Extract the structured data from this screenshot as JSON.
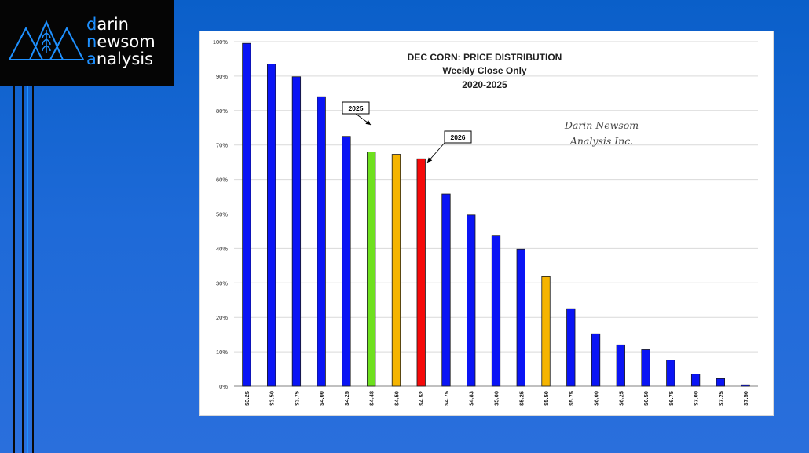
{
  "logo": {
    "line1": "darin",
    "line2": "newsom",
    "line3": "analysis"
  },
  "colors": {
    "background": "#1560d0",
    "blue_bar": "#0a14f5",
    "green_bar": "#6ee01e",
    "orange_bar": "#f5b400",
    "red_bar": "#f50a0a",
    "logo_accent": "#1e90ff"
  },
  "chart_data": {
    "type": "bar",
    "title": "DEC CORN: PRICE DISTRIBUTION",
    "subtitle1": "Weekly Close Only",
    "subtitle2": "2020-2025",
    "watermark_line1": "Darin Newsom",
    "watermark_line2": "Analysis Inc.",
    "ylim": [
      0,
      100
    ],
    "y_ticks": [
      "0%",
      "10%",
      "20%",
      "30%",
      "40%",
      "50%",
      "60%",
      "70%",
      "80%",
      "90%",
      "100%"
    ],
    "categories": [
      "$3.25",
      "$3.50",
      "$3.75",
      "$4.00",
      "$4.25",
      "$4.48",
      "$4.50",
      "$4.52",
      "$4.75",
      "$4.83",
      "$5.00",
      "$5.25",
      "$5.50",
      "$5.75",
      "$6.00",
      "$6.25",
      "$6.50",
      "$6.75",
      "$7.00",
      "$7.25",
      "$7.50"
    ],
    "values": [
      99.5,
      93.5,
      89.8,
      84.0,
      72.5,
      68.0,
      67.3,
      66.0,
      55.8,
      49.7,
      43.8,
      39.8,
      31.8,
      22.5,
      15.2,
      12.0,
      10.6,
      7.6,
      3.5,
      2.2,
      0.4
    ],
    "bar_colors": [
      "blue",
      "blue",
      "blue",
      "blue",
      "blue",
      "green",
      "orange",
      "red",
      "blue",
      "blue",
      "blue",
      "blue",
      "orange",
      "blue",
      "blue",
      "blue",
      "blue",
      "blue",
      "blue",
      "blue",
      "blue"
    ],
    "grid": true,
    "annotations": [
      {
        "label": "2025",
        "target_index": 5
      },
      {
        "label": "2026",
        "target_index": 7
      }
    ]
  }
}
